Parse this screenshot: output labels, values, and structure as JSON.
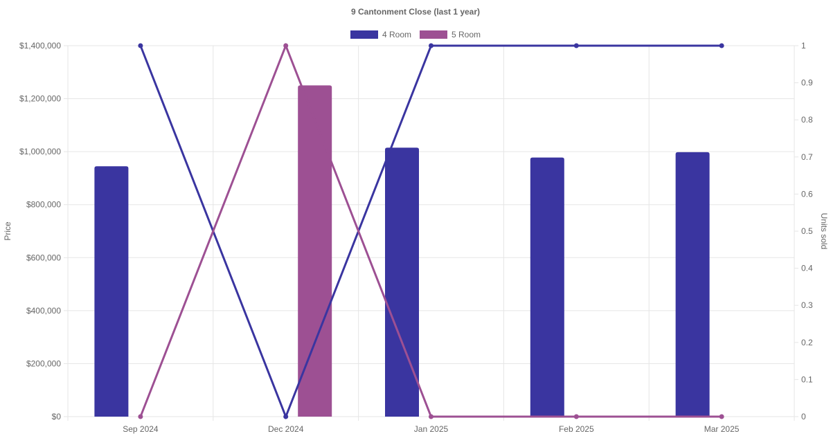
{
  "chart_data": {
    "type": "bar",
    "title": "9 Cantonment Close (last 1 year)",
    "categories": [
      "Sep 2024",
      "Dec 2024",
      "Jan 2025",
      "Feb 2025",
      "Mar 2025"
    ],
    "y_left": {
      "label": "Price",
      "range": [
        0,
        1400000
      ],
      "ticks": [
        "$0",
        "$200,000",
        "$400,000",
        "$600,000",
        "$800,000",
        "$1,000,000",
        "$1,200,000",
        "$1,400,000"
      ]
    },
    "y_right": {
      "label": "Units sold",
      "range": [
        0,
        1
      ],
      "ticks": [
        "0",
        "0.1",
        "0.2",
        "0.3",
        "0.4",
        "0.5",
        "0.6",
        "0.7",
        "0.8",
        "0.9",
        "1"
      ]
    },
    "legend_position": "top",
    "grid": true,
    "series": [
      {
        "name": "4 Room",
        "color": "#3a35a0",
        "price": [
          945000,
          null,
          1015000,
          978000,
          998000
        ],
        "units_sold": [
          1,
          0,
          1,
          1,
          1
        ]
      },
      {
        "name": "5 Room",
        "color": "#9d5093",
        "price": [
          null,
          1250000,
          null,
          null,
          null
        ],
        "units_sold": [
          0,
          1,
          0,
          0,
          0
        ]
      }
    ]
  }
}
